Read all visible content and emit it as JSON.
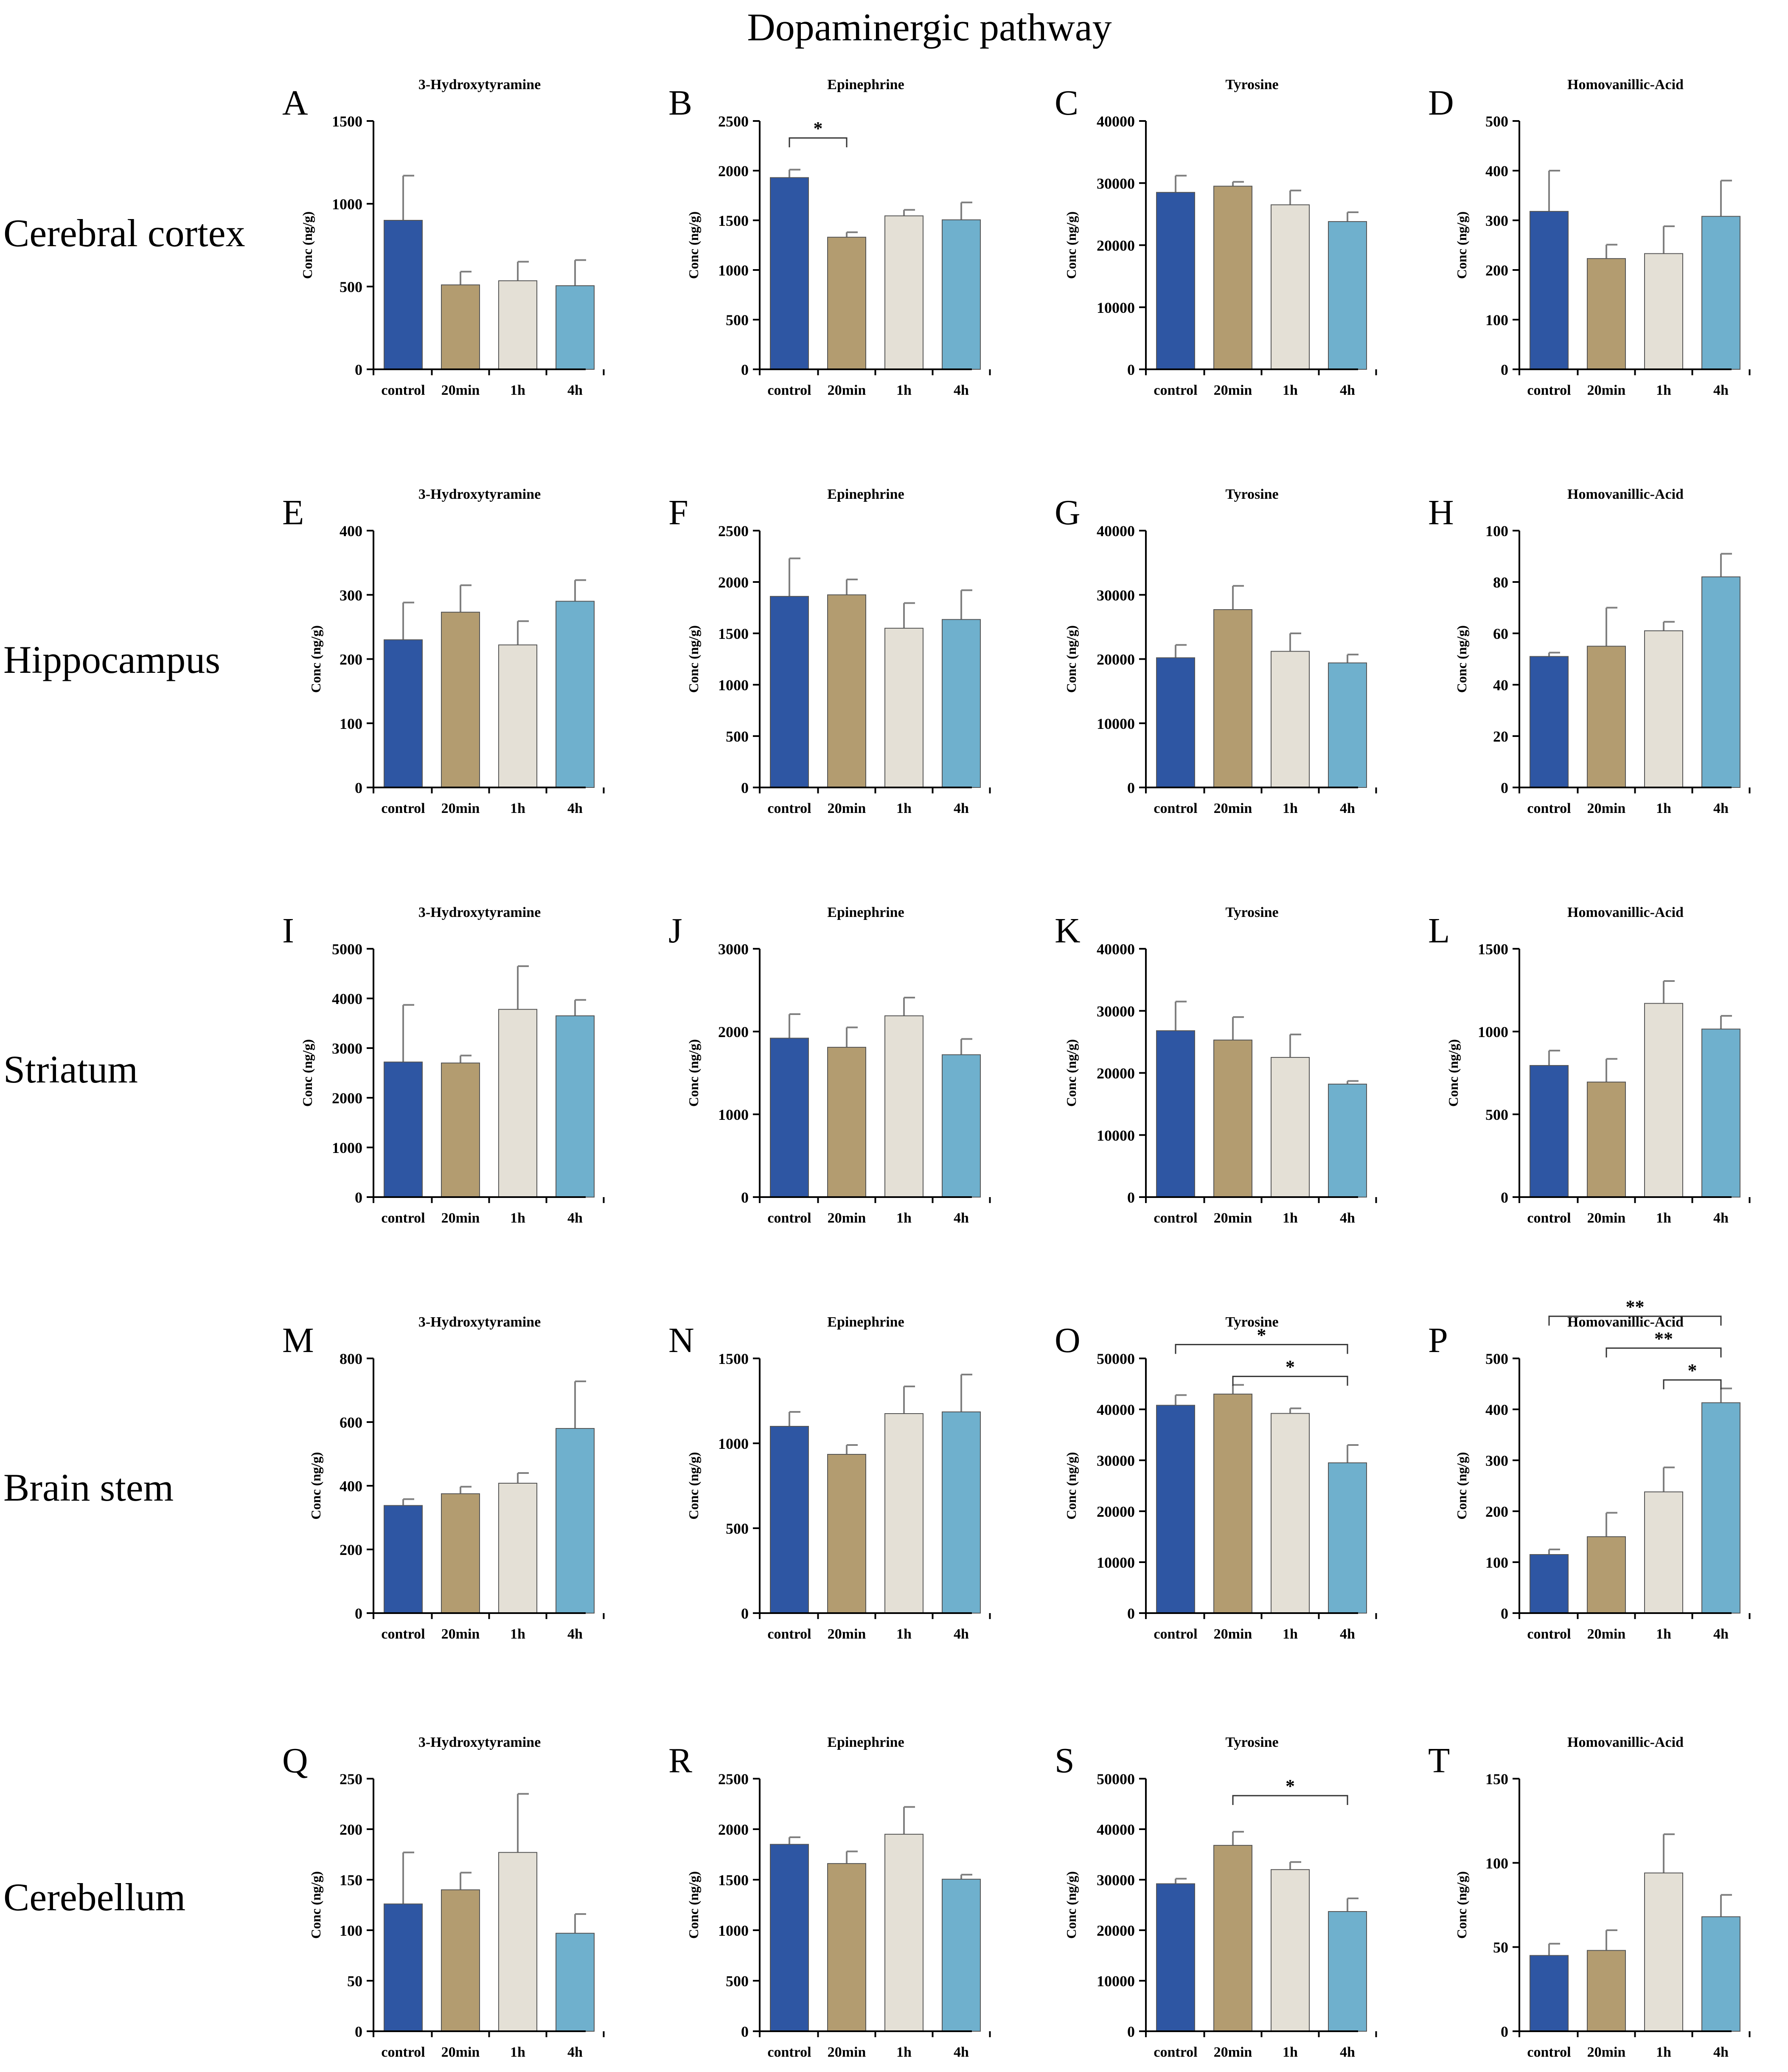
{
  "figure": {
    "title": "Dopaminergic pathway"
  },
  "rows": [
    "Cerebral cortex",
    "Hippocampus",
    "Striatum",
    "Brain stem",
    "Cerebellum"
  ],
  "colors": {
    "control": "#2e56a3",
    "20min": "#b39c70",
    "1h": "#e4e0d6",
    "4h": "#6fb0cd",
    "axis": "#000000",
    "error": "#7f7f7f"
  },
  "chart_data": [
    {
      "panel": "A",
      "type": "bar",
      "title": "3-Hydroxytyramine",
      "ylabel": "Conc (ng/g)",
      "categories": [
        "control",
        "20min",
        "1h",
        "4h"
      ],
      "values": [
        900,
        510,
        535,
        505
      ],
      "errors": [
        270,
        80,
        115,
        155
      ],
      "ylim": [
        0,
        1500
      ],
      "yticks": [
        0,
        500,
        1000,
        1500
      ],
      "significance": []
    },
    {
      "panel": "B",
      "type": "bar",
      "title": "Epinephrine",
      "ylabel": "Conc (ng/g)",
      "categories": [
        "control",
        "20min",
        "1h",
        "4h"
      ],
      "values": [
        1930,
        1330,
        1545,
        1505
      ],
      "errors": [
        80,
        50,
        60,
        175
      ],
      "ylim": [
        0,
        2500
      ],
      "yticks": [
        0,
        500,
        1000,
        1500,
        2000,
        2500
      ],
      "significance": [
        {
          "from": 0,
          "to": 1,
          "label": "*"
        }
      ]
    },
    {
      "panel": "C",
      "type": "bar",
      "title": "Tyrosine",
      "ylabel": "Conc (ng/g)",
      "categories": [
        "control",
        "20min",
        "1h",
        "4h"
      ],
      "values": [
        28500,
        29500,
        26500,
        23800
      ],
      "errors": [
        2700,
        700,
        2300,
        1500
      ],
      "ylim": [
        0,
        40000
      ],
      "yticks": [
        0,
        10000,
        20000,
        30000,
        40000
      ],
      "significance": []
    },
    {
      "panel": "D",
      "type": "bar",
      "title": "Homovanillic-Acid",
      "ylabel": "Conc (ng/g)",
      "categories": [
        "control",
        "20min",
        "1h",
        "4h"
      ],
      "values": [
        318,
        223,
        233,
        308
      ],
      "errors": [
        82,
        28,
        55,
        72
      ],
      "ylim": [
        0,
        500
      ],
      "yticks": [
        0,
        100,
        200,
        300,
        400,
        500
      ],
      "significance": []
    },
    {
      "panel": "E",
      "type": "bar",
      "title": "3-Hydroxytyramine",
      "ylabel": "Conc (ng/g)",
      "categories": [
        "control",
        "20min",
        "1h",
        "4h"
      ],
      "values": [
        230,
        273,
        222,
        290
      ],
      "errors": [
        58,
        42,
        37,
        33
      ],
      "ylim": [
        0,
        400
      ],
      "yticks": [
        0,
        100,
        200,
        300,
        400
      ],
      "significance": []
    },
    {
      "panel": "F",
      "type": "bar",
      "title": "Epinephrine",
      "ylabel": "Conc (ng/g)",
      "categories": [
        "control",
        "20min",
        "1h",
        "4h"
      ],
      "values": [
        1860,
        1875,
        1550,
        1635
      ],
      "errors": [
        370,
        150,
        245,
        285
      ],
      "ylim": [
        0,
        2500
      ],
      "yticks": [
        0,
        500,
        1000,
        1500,
        2000,
        2500
      ],
      "significance": []
    },
    {
      "panel": "G",
      "type": "bar",
      "title": "Tyrosine",
      "ylabel": "Conc (ng/g)",
      "categories": [
        "control",
        "20min",
        "1h",
        "4h"
      ],
      "values": [
        20200,
        27700,
        21200,
        19400
      ],
      "errors": [
        2000,
        3700,
        2800,
        1300
      ],
      "ylim": [
        0,
        40000
      ],
      "yticks": [
        0,
        10000,
        20000,
        30000,
        40000
      ],
      "significance": []
    },
    {
      "panel": "H",
      "type": "bar",
      "title": "Homovanillic-Acid",
      "ylabel": "Conc (ng/g)",
      "categories": [
        "control",
        "20min",
        "1h",
        "4h"
      ],
      "values": [
        51,
        55,
        61,
        82
      ],
      "errors": [
        1.5,
        15,
        3.5,
        9
      ],
      "ylim": [
        0,
        100
      ],
      "yticks": [
        0,
        20,
        40,
        60,
        80,
        100
      ],
      "significance": []
    },
    {
      "panel": "I",
      "type": "bar",
      "title": "3-Hydroxytyramine",
      "ylabel": "Conc (ng/g)",
      "categories": [
        "control",
        "20min",
        "1h",
        "4h"
      ],
      "values": [
        2720,
        2700,
        3780,
        3650
      ],
      "errors": [
        1150,
        150,
        870,
        320
      ],
      "ylim": [
        0,
        5000
      ],
      "yticks": [
        0,
        1000,
        2000,
        3000,
        4000,
        5000
      ],
      "significance": []
    },
    {
      "panel": "J",
      "type": "bar",
      "title": "Epinephrine",
      "ylabel": "Conc (ng/g)",
      "categories": [
        "control",
        "20min",
        "1h",
        "4h"
      ],
      "values": [
        1920,
        1810,
        2190,
        1720
      ],
      "errors": [
        290,
        240,
        220,
        190
      ],
      "ylim": [
        0,
        3000
      ],
      "yticks": [
        0,
        1000,
        2000,
        3000
      ],
      "significance": []
    },
    {
      "panel": "K",
      "type": "bar",
      "title": "Tyrosine",
      "ylabel": "Conc (ng/g)",
      "categories": [
        "control",
        "20min",
        "1h",
        "4h"
      ],
      "values": [
        26800,
        25300,
        22500,
        18200
      ],
      "errors": [
        4700,
        3700,
        3700,
        500
      ],
      "ylim": [
        0,
        40000
      ],
      "yticks": [
        0,
        10000,
        20000,
        30000,
        40000
      ],
      "significance": []
    },
    {
      "panel": "L",
      "type": "bar",
      "title": "Homovanillic-Acid",
      "ylabel": "Conc (ng/g)",
      "categories": [
        "control",
        "20min",
        "1h",
        "4h"
      ],
      "values": [
        795,
        695,
        1170,
        1015
      ],
      "errors": [
        90,
        140,
        135,
        80
      ],
      "ylim": [
        0,
        1500
      ],
      "yticks": [
        0,
        500,
        1000,
        1500
      ],
      "significance": []
    },
    {
      "panel": "M",
      "type": "bar",
      "title": "3-Hydroxytyramine",
      "ylabel": "Conc (ng/g)",
      "categories": [
        "control",
        "20min",
        "1h",
        "4h"
      ],
      "values": [
        338,
        375,
        408,
        580
      ],
      "errors": [
        20,
        22,
        32,
        148
      ],
      "ylim": [
        0,
        800
      ],
      "yticks": [
        0,
        200,
        400,
        600,
        800
      ],
      "significance": []
    },
    {
      "panel": "N",
      "type": "bar",
      "title": "Epinephrine",
      "ylabel": "Conc (ng/g)",
      "categories": [
        "control",
        "20min",
        "1h",
        "4h"
      ],
      "values": [
        1100,
        935,
        1175,
        1185
      ],
      "errors": [
        85,
        55,
        160,
        220
      ],
      "ylim": [
        0,
        1500
      ],
      "yticks": [
        0,
        500,
        1000,
        1500
      ],
      "significance": []
    },
    {
      "panel": "O",
      "type": "bar",
      "title": "Tyrosine",
      "ylabel": "Conc (ng/g)",
      "categories": [
        "control",
        "20min",
        "1h",
        "4h"
      ],
      "values": [
        40800,
        43000,
        39200,
        29500
      ],
      "errors": [
        2000,
        1800,
        1000,
        3500
      ],
      "ylim": [
        0,
        50000
      ],
      "yticks": [
        0,
        10000,
        20000,
        30000,
        40000,
        50000
      ],
      "significance": [
        {
          "from": 0,
          "to": 3,
          "label": "*"
        },
        {
          "from": 1,
          "to": 3,
          "label": "*"
        }
      ]
    },
    {
      "panel": "P",
      "type": "bar",
      "title": "Homovanillic-Acid",
      "ylabel": "Conc (ng/g)",
      "categories": [
        "control",
        "20min",
        "1h",
        "4h"
      ],
      "values": [
        115,
        150,
        238,
        413
      ],
      "errors": [
        10,
        47,
        48,
        28
      ],
      "ylim": [
        0,
        500
      ],
      "yticks": [
        0,
        100,
        200,
        300,
        400,
        500
      ],
      "significance": [
        {
          "from": 0,
          "to": 3,
          "label": "**"
        },
        {
          "from": 1,
          "to": 3,
          "label": "**"
        },
        {
          "from": 2,
          "to": 3,
          "label": "*"
        }
      ]
    },
    {
      "panel": "Q",
      "type": "bar",
      "title": "3-Hydroxytyramine",
      "ylabel": "Conc (ng/g)",
      "categories": [
        "control",
        "20min",
        "1h",
        "4h"
      ],
      "values": [
        126,
        140,
        177,
        97
      ],
      "errors": [
        51,
        17,
        58,
        19
      ],
      "ylim": [
        0,
        250
      ],
      "yticks": [
        0,
        50,
        100,
        150,
        200,
        250
      ],
      "significance": []
    },
    {
      "panel": "R",
      "type": "bar",
      "title": "Epinephrine",
      "ylabel": "Conc (ng/g)",
      "categories": [
        "control",
        "20min",
        "1h",
        "4h"
      ],
      "values": [
        1850,
        1660,
        1950,
        1505
      ],
      "errors": [
        70,
        120,
        270,
        45
      ],
      "ylim": [
        0,
        2500
      ],
      "yticks": [
        0,
        500,
        1000,
        1500,
        2000,
        2500
      ],
      "significance": []
    },
    {
      "panel": "S",
      "type": "bar",
      "title": "Tyrosine",
      "ylabel": "Conc (ng/g)",
      "categories": [
        "control",
        "20min",
        "1h",
        "4h"
      ],
      "values": [
        29200,
        36800,
        32000,
        23700
      ],
      "errors": [
        1000,
        2700,
        1500,
        2600
      ],
      "ylim": [
        0,
        50000
      ],
      "yticks": [
        0,
        10000,
        20000,
        30000,
        40000,
        50000
      ],
      "significance": [
        {
          "from": 1,
          "to": 3,
          "label": "*"
        }
      ]
    },
    {
      "panel": "T",
      "type": "bar",
      "title": "Homovanillic-Acid",
      "ylabel": "Conc (ng/g)",
      "categories": [
        "control",
        "20min",
        "1h",
        "4h"
      ],
      "values": [
        45,
        48,
        94,
        68
      ],
      "errors": [
        7,
        12,
        23,
        13
      ],
      "ylim": [
        0,
        150
      ],
      "yticks": [
        0,
        50,
        100,
        150
      ],
      "significance": []
    }
  ]
}
